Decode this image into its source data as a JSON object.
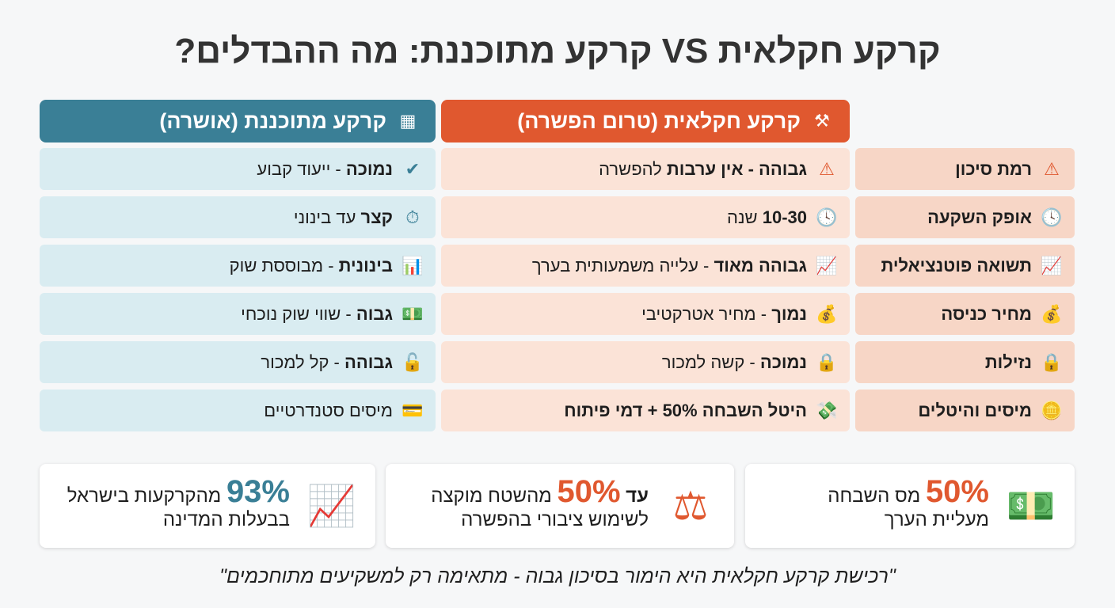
{
  "title": "קרקע חקלאית VS קרקע מתוכננת: מה ההבדלים?",
  "headers": {
    "agricultural": "קרקע חקלאית (טרום הפשרה)",
    "planned": "קרקע מתוכננת (אושרה)"
  },
  "rows": [
    {
      "label": "רמת סיכון",
      "label_icon": "warning-icon",
      "agri_bold": "גבוהה - אין ערבות",
      "agri_rest": " להפשרה",
      "agri_icon": "red-warning-icon",
      "plan_bold": "נמוכה",
      "plan_rest": " - ייעוד קבוע",
      "plan_icon": "check-icon"
    },
    {
      "label": "אופק השקעה",
      "label_icon": "clock-icon",
      "agri_bold": "10-30",
      "agri_rest": " שנה",
      "agri_icon": "clock-icon",
      "plan_bold": "קצר",
      "plan_rest": " עד בינוני",
      "plan_icon": "stopwatch-icon"
    },
    {
      "label": "תשואה פוטנציאלית",
      "label_icon": "chart-up-icon",
      "agri_bold": "גבוהה מאוד",
      "agri_rest": " - עלייה משמעותית בערך",
      "agri_icon": "chart-up-icon",
      "plan_bold": "בינונית",
      "plan_rest": " - מבוססת שוק",
      "plan_icon": "bar-chart-icon"
    },
    {
      "label": "מחיר כניסה",
      "label_icon": "money-bag-icon",
      "agri_bold": "נמוך",
      "agri_rest": " - מחיר אטרקטיבי",
      "agri_icon": "money-bag-icon",
      "plan_bold": "גבוה",
      "plan_rest": " - שווי שוק נוכחי",
      "plan_icon": "cash-stack-icon"
    },
    {
      "label": "נזילות",
      "label_icon": "lock-icon",
      "agri_bold": "נמוכה",
      "agri_rest": " - קשה למכור",
      "agri_icon": "lock-icon",
      "plan_bold": "גבוהה",
      "plan_rest": " - קל למכור",
      "plan_icon": "unlock-icon"
    },
    {
      "label": "מיסים והיטלים",
      "label_icon": "coins-icon",
      "agri_bold": "היטל השבחה 50% + דמי פיתוח",
      "agri_rest": "",
      "agri_icon": "flying-money-icon",
      "plan_bold": "",
      "plan_rest": "מיסים סטנדרטיים",
      "plan_icon": "credit-card-icon"
    }
  ],
  "stats": [
    {
      "value": "50%",
      "text1": " מס השבחה",
      "text2": "מעליית הערך"
    },
    {
      "prefix": "עד ",
      "value": "50%",
      "text1": " מהשטח מוקצה",
      "text2": "לשימוש ציבורי בהפשרה"
    },
    {
      "value": "93%",
      "text1": " מהקרקעות בישראל",
      "text2": "בבעלות המדינה"
    }
  ],
  "quote": "\"רכישת קרקע חקלאית היא הימור בסיכון גבוה - מתאימה רק למשקיעים מתוחכמים\"",
  "colors": {
    "orange": "#e0582f",
    "teal": "#3a7f96"
  }
}
